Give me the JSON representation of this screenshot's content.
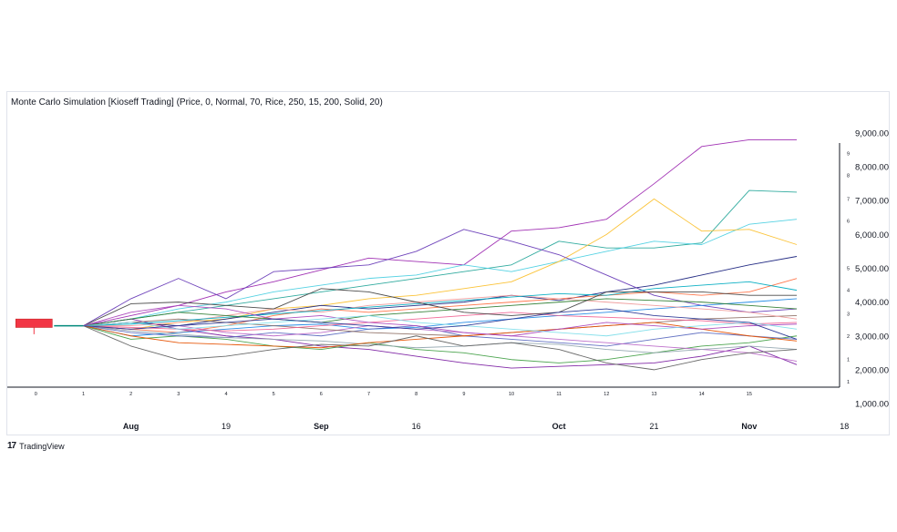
{
  "title": "Monte Carlo Simulation [Kioseff Trading] (Price, 0, Normal, 70, Rice, 250, 15, 200, Solid, 20)",
  "brand": {
    "logo": "17",
    "name": "TradingView"
  },
  "chart_data": {
    "type": "line",
    "yticks": [
      "9,000.00",
      "8,000.00",
      "7,000.00",
      "6,000.00",
      "5,000.00",
      "4,000.00",
      "3,000.00",
      "2,000.00",
      "1,000.00"
    ],
    "ytick_values": [
      9000,
      8000,
      7000,
      6000,
      5000,
      4000,
      3000,
      2000,
      1000
    ],
    "ylim": [
      650,
      9700
    ],
    "xlim": [
      -0.6,
      16.9
    ],
    "steps": [
      "0",
      "1",
      "2",
      "3",
      "4",
      "5",
      "6",
      "7",
      "8",
      "9",
      "10",
      "11",
      "12",
      "13",
      "14",
      "15"
    ],
    "date_ticks": [
      {
        "label": "Aug",
        "x": 2,
        "bold": true
      },
      {
        "label": "19",
        "x": 4,
        "bold": false
      },
      {
        "label": "Sep",
        "x": 6,
        "bold": true
      },
      {
        "label": "16",
        "x": 8,
        "bold": false
      },
      {
        "label": "Oct",
        "x": 11,
        "bold": true
      },
      {
        "label": "21",
        "x": 13,
        "bold": false
      },
      {
        "label": "Nov",
        "x": 15,
        "bold": true
      },
      {
        "label": "18",
        "x": 17,
        "bold": false
      }
    ],
    "percentile_scale": [
      {
        "label": "9",
        "y": 8400
      },
      {
        "label": "8",
        "y": 7750
      },
      {
        "label": "7",
        "y": 7050
      },
      {
        "label": "6",
        "y": 6400
      },
      {
        "label": "5",
        "y": 5000
      },
      {
        "label": "4",
        "y": 4350
      },
      {
        "label": "3",
        "y": 3650
      },
      {
        "label": "2",
        "y": 3000
      },
      {
        "label": "1",
        "y": 2300
      },
      {
        "label": "1",
        "y": 1650
      }
    ],
    "candle": {
      "x": 0,
      "open": 3500,
      "close": 3250,
      "high": 3500,
      "low": 3050,
      "color": "#f23645"
    },
    "start": {
      "x": 1,
      "value": 3300
    },
    "series": [
      {
        "color": "#9c27b0",
        "values": [
          3300,
          3600,
          3900,
          4300,
          4600,
          4950,
          5300,
          5200,
          5100,
          6100,
          6200,
          6450,
          7500,
          8600,
          8800,
          8800
        ]
      },
      {
        "color": "#26a69a",
        "values": [
          3300,
          3500,
          3700,
          3900,
          4100,
          4300,
          4500,
          4700,
          4900,
          5100,
          5800,
          5600,
          5600,
          5750,
          7300,
          7250
        ]
      },
      {
        "color": "#4dd0e1",
        "values": [
          3300,
          3500,
          3800,
          4000,
          4300,
          4500,
          4700,
          4800,
          5100,
          4900,
          5200,
          5500,
          5800,
          5700,
          6300,
          6450
        ]
      },
      {
        "color": "#fbc02d",
        "values": [
          3300,
          3200,
          3400,
          3500,
          3800,
          3900,
          4100,
          4200,
          4400,
          4600,
          5200,
          6000,
          7050,
          6100,
          6150,
          5700
        ]
      },
      {
        "color": "#1a237e",
        "values": [
          3300,
          3400,
          3300,
          3500,
          3700,
          3900,
          3800,
          3900,
          4000,
          4200,
          4050,
          4300,
          4500,
          4800,
          5100,
          5350
        ]
      },
      {
        "color": "#673ab7",
        "values": [
          3300,
          4100,
          4700,
          4100,
          4900,
          5000,
          5100,
          5500,
          6150,
          5800,
          5400,
          4800,
          4200,
          3900,
          3700,
          3800
        ]
      },
      {
        "color": "#ff7043",
        "values": [
          3300,
          3200,
          3100,
          3300,
          3600,
          3800,
          3700,
          3800,
          3900,
          4000,
          4100,
          4200,
          4300,
          4200,
          4300,
          4700
        ]
      },
      {
        "color": "#1e88e5",
        "values": [
          3300,
          3000,
          3100,
          3200,
          3300,
          3350,
          3200,
          3250,
          3400,
          3500,
          3600,
          3700,
          3800,
          3900,
          4000,
          4100
        ]
      },
      {
        "color": "#7b1fa2",
        "values": [
          3300,
          3500,
          3200,
          3000,
          2900,
          2700,
          2600,
          2400,
          2200,
          2050,
          2100,
          2150,
          2200,
          2400,
          2700,
          2150
        ]
      },
      {
        "color": "#43a047",
        "values": [
          3300,
          2900,
          3000,
          2900,
          2700,
          2600,
          2800,
          2600,
          2500,
          2300,
          2200,
          2300,
          2500,
          2700,
          2800,
          3000
        ]
      },
      {
        "color": "#5c6bc0",
        "values": [
          3300,
          3100,
          3000,
          2950,
          3100,
          3000,
          3200,
          3300,
          3000,
          2900,
          2800,
          2700,
          2900,
          3100,
          3000,
          2900
        ]
      },
      {
        "color": "#ba68c8",
        "values": [
          3300,
          3200,
          3300,
          3100,
          3000,
          3100,
          3300,
          3200,
          3100,
          3000,
          2900,
          2800,
          2700,
          2600,
          2500,
          2250
        ]
      },
      {
        "color": "#8d6e63",
        "values": [
          3300,
          3400,
          3500,
          3400,
          3300,
          3200,
          3100,
          3050,
          3000,
          3100,
          3200,
          3300,
          3400,
          3500,
          3550,
          3600
        ]
      },
      {
        "color": "#ef9a9a",
        "values": [
          3300,
          3300,
          3400,
          3600,
          3800,
          3700,
          3900,
          4000,
          4100,
          4200,
          4100,
          4000,
          3900,
          3800,
          3700,
          3500
        ]
      },
      {
        "color": "#90a4ae",
        "values": [
          3300,
          3150,
          3050,
          2950,
          2900,
          2850,
          2750,
          2650,
          2700,
          2800,
          2750,
          2600,
          2500,
          2600,
          2700,
          2600
        ]
      },
      {
        "color": "#f06292",
        "values": [
          3300,
          3250,
          3200,
          3150,
          3200,
          3300,
          3400,
          3500,
          3600,
          3700,
          3600,
          3550,
          3500,
          3450,
          3350,
          3400
        ]
      },
      {
        "color": "#00acc1",
        "values": [
          3300,
          3350,
          3450,
          3550,
          3650,
          3750,
          3850,
          3950,
          4050,
          4150,
          4250,
          4200,
          4400,
          4500,
          4600,
          4350
        ]
      },
      {
        "color": "#e65100",
        "values": [
          3300,
          3000,
          2800,
          2750,
          2700,
          2650,
          2800,
          2900,
          3000,
          3100,
          3200,
          3300,
          3400,
          3200,
          3000,
          2850
        ]
      },
      {
        "color": "#2e7d32",
        "values": [
          3300,
          3500,
          3700,
          3600,
          3500,
          3400,
          3600,
          3700,
          3800,
          3900,
          4000,
          4100,
          4050,
          4000,
          3900,
          3800
        ]
      },
      {
        "color": "#424242",
        "values": [
          3300,
          3950,
          4000,
          3900,
          3800,
          4400,
          4300,
          4000,
          3700,
          3600,
          3700,
          4300,
          4300,
          4300,
          4200,
          4200
        ]
      },
      {
        "color": "#616161",
        "values": [
          3300,
          2700,
          2300,
          2400,
          2600,
          2750,
          2700,
          3000,
          2700,
          2800,
          2600,
          2200,
          2000,
          2300,
          2500,
          2600
        ]
      },
      {
        "color": "#ab47bc",
        "values": [
          3300,
          3700,
          3900,
          3800,
          3500,
          3600,
          3400,
          3300,
          3100,
          3000,
          3200,
          3400,
          3300,
          3200,
          3300,
          3350
        ]
      },
      {
        "color": "#80deea",
        "values": [
          3300,
          3400,
          3200,
          3300,
          3400,
          3500,
          3600,
          3400,
          3300,
          3200,
          3100,
          3000,
          3200,
          3300,
          3400,
          3200
        ]
      },
      {
        "color": "#283593",
        "values": [
          3300,
          3200,
          3300,
          3400,
          3500,
          3400,
          3300,
          3200,
          3300,
          3500,
          3700,
          3800,
          3600,
          3500,
          3400,
          2900
        ]
      }
    ]
  }
}
